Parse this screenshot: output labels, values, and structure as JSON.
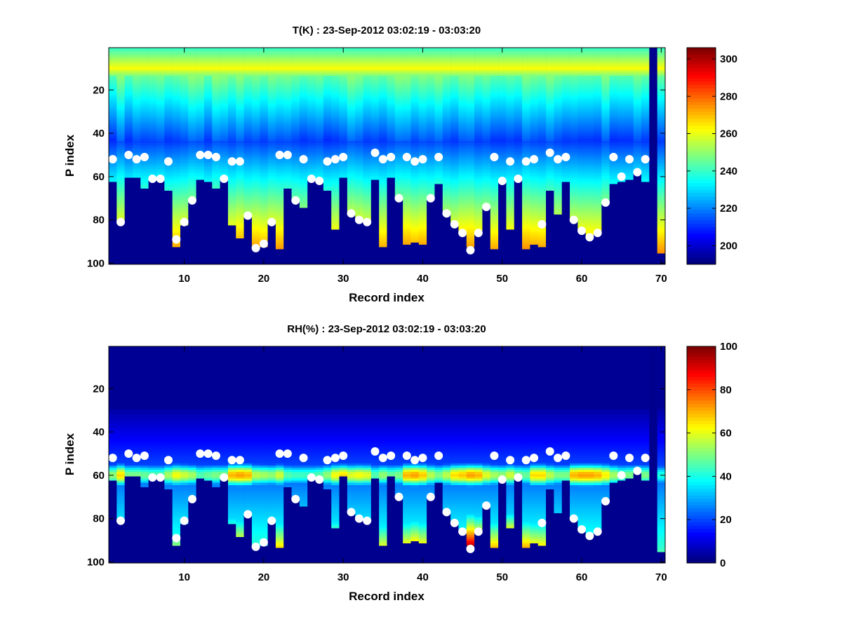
{
  "chart_data": [
    {
      "type": "heatmap",
      "title": "T(K) : 23-Sep-2012 03:02:19 - 03:03:20",
      "xlabel": "Record index",
      "ylabel": "P index",
      "xlim": [
        0.5,
        70.5
      ],
      "ylim": [
        1,
        100
      ],
      "y_reversed": true,
      "xticks": [
        10,
        20,
        30,
        40,
        50,
        60,
        70
      ],
      "yticks": [
        20,
        40,
        60,
        80,
        100
      ],
      "colormap": "jet",
      "clim": [
        190,
        306
      ],
      "colorbar_ticks": [
        200,
        220,
        240,
        260,
        280,
        300
      ],
      "missing_color": "#00008F",
      "records": 70,
      "levels": 100,
      "profile_note": "Temperature per record: ~255-265 K near P 8-12, cooling to ~205-215 K near P 40-48, warming downward to ~270-285 K at the data cutoff; below cutoff is missing.",
      "data_cutoff_p": [
        62,
        80,
        60,
        60,
        65,
        61,
        61,
        66,
        92,
        82,
        71,
        61,
        62,
        65,
        60,
        82,
        88,
        78,
        92,
        92,
        81,
        93,
        65,
        71,
        74,
        60,
        61,
        66,
        84,
        60,
        77,
        80,
        81,
        61,
        92,
        60,
        70,
        91,
        90,
        91,
        70,
        63,
        77,
        82,
        86,
        92,
        86,
        74,
        93,
        61,
        84,
        60,
        93,
        91,
        92,
        66,
        77,
        62,
        80,
        85,
        88,
        86,
        72,
        63,
        62,
        61,
        58,
        62,
        0,
        95
      ],
      "markers_upper_p": [
        52,
        null,
        50,
        52,
        51,
        null,
        null,
        53,
        null,
        null,
        null,
        50,
        50,
        51,
        null,
        53,
        53,
        null,
        null,
        null,
        null,
        50,
        50,
        null,
        52,
        null,
        null,
        53,
        52,
        51,
        null,
        null,
        null,
        49,
        52,
        51,
        null,
        51,
        53,
        52,
        null,
        51,
        null,
        null,
        null,
        null,
        null,
        null,
        51,
        null,
        53,
        null,
        53,
        52,
        null,
        49,
        52,
        51,
        null,
        null,
        null,
        null,
        null,
        51,
        null,
        52,
        null,
        52,
        null,
        null
      ],
      "markers_lower_p": [
        null,
        81,
        null,
        null,
        null,
        61,
        61,
        null,
        89,
        81,
        71,
        null,
        null,
        null,
        61,
        null,
        null,
        78,
        93,
        91,
        81,
        null,
        null,
        71,
        null,
        61,
        62,
        null,
        null,
        null,
        77,
        80,
        81,
        null,
        null,
        null,
        70,
        null,
        null,
        null,
        70,
        null,
        77,
        82,
        86,
        94,
        86,
        74,
        null,
        62,
        null,
        61,
        null,
        null,
        82,
        null,
        null,
        null,
        80,
        85,
        88,
        86,
        72,
        null,
        60,
        null,
        58,
        null,
        null,
        null
      ],
      "marker_color": "#FFFFFF"
    },
    {
      "type": "heatmap",
      "title": "RH(%) : 23-Sep-2012 03:02:19 - 03:03:20",
      "xlabel": "Record index",
      "ylabel": "P index",
      "xlim": [
        0.5,
        70.5
      ],
      "ylim": [
        1,
        100
      ],
      "y_reversed": true,
      "xticks": [
        10,
        20,
        30,
        40,
        50,
        60,
        70
      ],
      "yticks": [
        20,
        40,
        60,
        80,
        100
      ],
      "colormap": "jet",
      "clim": [
        0,
        100
      ],
      "colorbar_ticks": [
        0,
        20,
        40,
        60,
        80,
        100
      ],
      "missing_color": "#00008F",
      "records": 70,
      "levels": 100,
      "profile_note": "Relative humidity ~0-5% above P 30, moist layer ~55-70% near P 55-65, variable deeper values up to ~60-90% near cutoff.",
      "band_peak_rh": [
        52,
        66,
        50,
        50,
        48,
        46,
        46,
        54,
        62,
        58,
        54,
        46,
        48,
        50,
        50,
        70,
        72,
        70,
        56,
        54,
        52,
        58,
        46,
        44,
        44,
        44,
        46,
        52,
        62,
        66,
        60,
        62,
        60,
        46,
        52,
        48,
        50,
        70,
        72,
        68,
        56,
        50,
        56,
        66,
        68,
        72,
        70,
        60,
        54,
        52,
        58,
        50,
        48,
        66,
        66,
        56,
        50,
        50,
        70,
        72,
        72,
        70,
        64,
        54,
        48,
        50,
        52,
        50,
        0,
        40
      ],
      "deep_rh": [
        0,
        30,
        0,
        0,
        0,
        0,
        0,
        0,
        50,
        0,
        0,
        0,
        0,
        0,
        0,
        40,
        55,
        0,
        25,
        20,
        0,
        65,
        0,
        0,
        0,
        0,
        0,
        0,
        42,
        0,
        0,
        0,
        0,
        0,
        58,
        0,
        0,
        60,
        62,
        60,
        0,
        0,
        10,
        30,
        30,
        92,
        60,
        0,
        68,
        0,
        58,
        0,
        70,
        60,
        62,
        0,
        30,
        0,
        0,
        0,
        0,
        0,
        0,
        0,
        0,
        0,
        0,
        0,
        0,
        45
      ],
      "markers_upper_p": [
        52,
        null,
        50,
        52,
        51,
        null,
        null,
        53,
        null,
        null,
        null,
        50,
        50,
        51,
        null,
        53,
        53,
        null,
        null,
        null,
        null,
        50,
        50,
        null,
        52,
        null,
        null,
        53,
        52,
        51,
        null,
        null,
        null,
        49,
        52,
        51,
        null,
        51,
        53,
        52,
        null,
        51,
        null,
        null,
        null,
        null,
        null,
        null,
        51,
        null,
        53,
        null,
        53,
        52,
        null,
        49,
        52,
        51,
        null,
        null,
        null,
        null,
        null,
        51,
        null,
        52,
        null,
        52,
        null,
        null
      ],
      "markers_lower_p": [
        null,
        81,
        null,
        null,
        null,
        61,
        61,
        null,
        89,
        81,
        71,
        null,
        null,
        null,
        61,
        null,
        null,
        78,
        93,
        91,
        81,
        null,
        null,
        71,
        null,
        61,
        62,
        null,
        null,
        null,
        77,
        80,
        81,
        null,
        null,
        null,
        70,
        null,
        null,
        null,
        70,
        null,
        77,
        82,
        86,
        94,
        86,
        74,
        null,
        62,
        null,
        61,
        null,
        null,
        82,
        null,
        null,
        null,
        80,
        85,
        88,
        86,
        72,
        null,
        60,
        null,
        58,
        null,
        null,
        null
      ],
      "marker_color": "#FFFFFF"
    }
  ]
}
